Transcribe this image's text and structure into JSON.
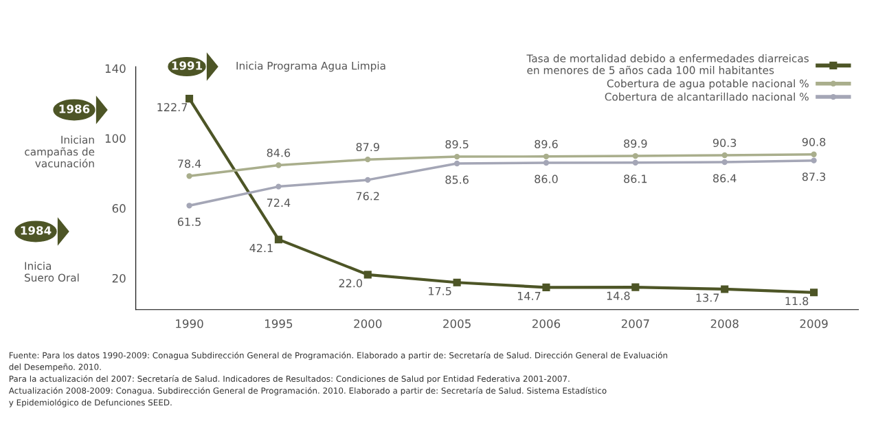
{
  "chart_data": {
    "type": "line",
    "categories": [
      "1990",
      "1995",
      "2000",
      "2005",
      "2006",
      "2007",
      "2008",
      "2009"
    ],
    "series": [
      {
        "name": "Tasa de mortalidad debido a enfermedades diarreicas\nen menores de 5 años cada 100 mil habitantes",
        "color": "#4d5526",
        "marker": "square",
        "values": [
          122.7,
          42.1,
          22.0,
          17.5,
          14.7,
          14.8,
          13.7,
          11.8
        ],
        "value_labels": [
          "122.7",
          "42.1",
          "22.0",
          "17.5",
          "14.7",
          "14.8",
          "13.7",
          "11.8"
        ]
      },
      {
        "name": "Cobertura de agua potable nacional %",
        "color": "#a9ae8c",
        "marker": "circle",
        "values": [
          78.4,
          84.6,
          87.9,
          89.5,
          89.6,
          89.9,
          90.3,
          90.8
        ],
        "value_labels": [
          "78.4",
          "84.6",
          "87.9",
          "89.5",
          "89.6",
          "89.9",
          "90.3",
          "90.8"
        ]
      },
      {
        "name": "Cobertura de alcantarillado nacional %",
        "color": "#a4a6b6",
        "marker": "circle",
        "values": [
          61.5,
          72.4,
          76.2,
          85.6,
          86.0,
          86.1,
          86.4,
          87.3
        ],
        "value_labels": [
          "61.5",
          "72.4",
          "76.2",
          "85.6",
          "86.0",
          "86.1",
          "86.4",
          "87.3"
        ]
      }
    ],
    "ylim": [
      2,
      141
    ],
    "yticks": [
      20,
      60,
      100,
      140
    ],
    "legend": "top right",
    "grid": false,
    "line_style": "solid",
    "annotations": [
      "1991",
      "Inicia Programa Agua Limpia",
      "1986",
      "Inician\ncampañas de\nvacunación",
      "1984",
      "Inicia\nSuero Oral",
      "Fuente: Para los datos 1990-2009: Conagua Subdirección General de Programación. Elaborado a partir de: Secretaría de Salud. Dirección General de Evaluación\ndel Desempeño. 2010.\nPara la actualización del 2007: Secretaría de Salud. Indicadores de Resultados: Condiciones de Salud por Entidad Federativa 2001-2007.\nActualización 2008-2009: Conagua. Subdirección General de Programación. 2010. Elaborado a partir de: Secretaría de Salud. Sistema Estadístico\ny Epidemiológico de Defunciones SEED."
    ]
  }
}
